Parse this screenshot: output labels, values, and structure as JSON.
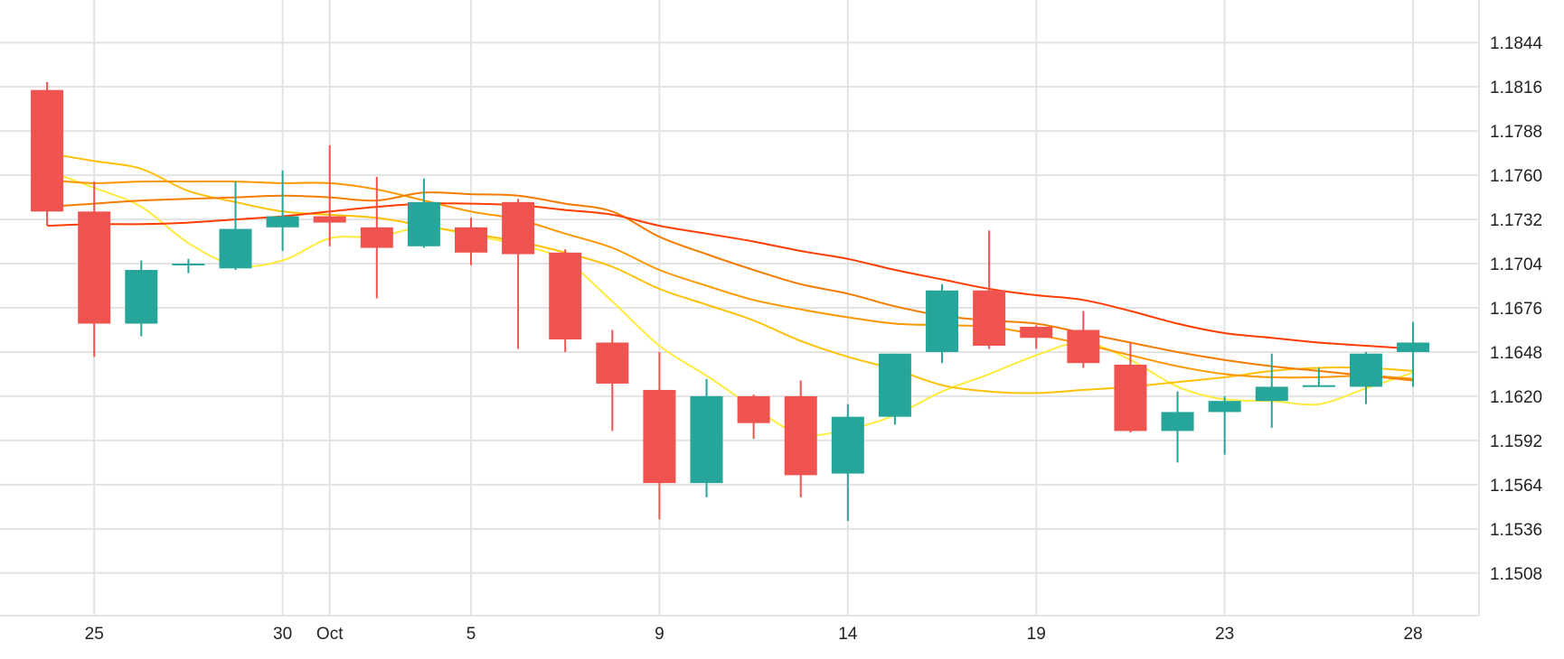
{
  "chart_data": {
    "type": "candlestick",
    "x_tick_labels": [
      {
        "label": "25",
        "day": 1
      },
      {
        "label": "30",
        "day": 5
      },
      {
        "label": "Oct",
        "day": 6
      },
      {
        "label": "5",
        "day": 9
      },
      {
        "label": "9",
        "day": 13
      },
      {
        "label": "14",
        "day": 17
      },
      {
        "label": "19",
        "day": 21
      },
      {
        "label": "23",
        "day": 25
      },
      {
        "label": "28",
        "day": 29
      }
    ],
    "y_ticks": [
      "1.1844",
      "1.1816",
      "1.1788",
      "1.1760",
      "1.1732",
      "1.1704",
      "1.1676",
      "1.1648",
      "1.1620",
      "1.1592",
      "1.1564",
      "1.1536",
      "1.1508"
    ],
    "ylim": [
      1.1481,
      1.1871
    ],
    "xlim": [
      -1,
      30.4
    ],
    "grid": true,
    "y_axis_position": "right",
    "up_color": "#26a69a",
    "down_color": "#ef5350",
    "candles": [
      {
        "day": 0,
        "open": 1.1814,
        "high": 1.1819,
        "low": 1.1728,
        "close": 1.1737
      },
      {
        "day": 1,
        "open": 1.1737,
        "high": 1.1756,
        "low": 1.1645,
        "close": 1.1666
      },
      {
        "day": 2,
        "open": 1.1666,
        "high": 1.1706,
        "low": 1.1658,
        "close": 1.17
      },
      {
        "day": 3,
        "open": 1.1703,
        "high": 1.1707,
        "low": 1.1698,
        "close": 1.1704
      },
      {
        "day": 4,
        "open": 1.1701,
        "high": 1.1756,
        "low": 1.17,
        "close": 1.1726
      },
      {
        "day": 5,
        "open": 1.1727,
        "high": 1.1763,
        "low": 1.1712,
        "close": 1.1734
      },
      {
        "day": 6,
        "open": 1.1734,
        "high": 1.1779,
        "low": 1.1715,
        "close": 1.173
      },
      {
        "day": 7,
        "open": 1.1727,
        "high": 1.1759,
        "low": 1.1682,
        "close": 1.1714
      },
      {
        "day": 8,
        "open": 1.1715,
        "high": 1.1758,
        "low": 1.1714,
        "close": 1.1743
      },
      {
        "day": 9,
        "open": 1.1727,
        "high": 1.1733,
        "low": 1.1703,
        "close": 1.1711
      },
      {
        "day": 10,
        "open": 1.1743,
        "high": 1.1745,
        "low": 1.165,
        "close": 1.171
      },
      {
        "day": 11,
        "open": 1.1711,
        "high": 1.1713,
        "low": 1.1648,
        "close": 1.1656
      },
      {
        "day": 12,
        "open": 1.1654,
        "high": 1.1662,
        "low": 1.1598,
        "close": 1.1628
      },
      {
        "day": 13,
        "open": 1.1624,
        "high": 1.1648,
        "low": 1.1542,
        "close": 1.1565
      },
      {
        "day": 14,
        "open": 1.1565,
        "high": 1.1631,
        "low": 1.1556,
        "close": 1.162
      },
      {
        "day": 15,
        "open": 1.162,
        "high": 1.1621,
        "low": 1.1593,
        "close": 1.1603
      },
      {
        "day": 16,
        "open": 1.162,
        "high": 1.163,
        "low": 1.1556,
        "close": 1.157
      },
      {
        "day": 17,
        "open": 1.1571,
        "high": 1.1615,
        "low": 1.1541,
        "close": 1.1607
      },
      {
        "day": 18,
        "open": 1.1607,
        "high": 1.1647,
        "low": 1.1602,
        "close": 1.1647
      },
      {
        "day": 19,
        "open": 1.1648,
        "high": 1.1691,
        "low": 1.1641,
        "close": 1.1687
      },
      {
        "day": 20,
        "open": 1.1687,
        "high": 1.1725,
        "low": 1.165,
        "close": 1.1652
      },
      {
        "day": 21,
        "open": 1.1664,
        "high": 1.1665,
        "low": 1.165,
        "close": 1.1657
      },
      {
        "day": 22,
        "open": 1.1662,
        "high": 1.1674,
        "low": 1.1638,
        "close": 1.1641
      },
      {
        "day": 23,
        "open": 1.164,
        "high": 1.1654,
        "low": 1.1597,
        "close": 1.1598
      },
      {
        "day": 24,
        "open": 1.1598,
        "high": 1.1623,
        "low": 1.1578,
        "close": 1.161
      },
      {
        "day": 25,
        "open": 1.161,
        "high": 1.162,
        "low": 1.1583,
        "close": 1.1617
      },
      {
        "day": 26,
        "open": 1.1617,
        "high": 1.1647,
        "low": 1.16,
        "close": 1.1626
      },
      {
        "day": 27,
        "open": 1.1626,
        "high": 1.1638,
        "low": 1.1626,
        "close": 1.1627
      },
      {
        "day": 28,
        "open": 1.1626,
        "high": 1.1648,
        "low": 1.1615,
        "close": 1.1647
      },
      {
        "day": 29,
        "open": 1.1648,
        "high": 1.1667,
        "low": 1.1626,
        "close": 1.1654
      }
    ],
    "overlays": [
      {
        "color": "#ffeb3b",
        "points": [
          [
            0,
            1.1763
          ],
          [
            1,
            1.1752
          ],
          [
            2,
            1.174
          ],
          [
            3,
            1.1717
          ],
          [
            4,
            1.1703
          ],
          [
            5,
            1.1706
          ],
          [
            6,
            1.172
          ],
          [
            7,
            1.1721
          ],
          [
            8,
            1.1727
          ],
          [
            9,
            1.1722
          ],
          [
            10,
            1.1716
          ],
          [
            11,
            1.1706
          ],
          [
            12,
            1.168
          ],
          [
            13,
            1.1652
          ],
          [
            14,
            1.1633
          ],
          [
            15,
            1.1613
          ],
          [
            16,
            1.1596
          ],
          [
            17,
            1.1599
          ],
          [
            18,
            1.1608
          ],
          [
            19,
            1.1623
          ],
          [
            20,
            1.1634
          ],
          [
            21,
            1.1646
          ],
          [
            22,
            1.1654
          ],
          [
            23,
            1.1643
          ],
          [
            24,
            1.1626
          ],
          [
            25,
            1.1618
          ],
          [
            26,
            1.1617
          ],
          [
            27,
            1.1615
          ],
          [
            28,
            1.1625
          ],
          [
            29,
            1.1635
          ]
        ]
      },
      {
        "color": "#ffc107",
        "points": [
          [
            0,
            1.1774
          ],
          [
            1,
            1.1769
          ],
          [
            2,
            1.1764
          ],
          [
            3,
            1.175
          ],
          [
            4,
            1.1743
          ],
          [
            5,
            1.1737
          ],
          [
            6,
            1.1735
          ],
          [
            7,
            1.1733
          ],
          [
            8,
            1.1728
          ],
          [
            9,
            1.1723
          ],
          [
            10,
            1.1718
          ],
          [
            11,
            1.1711
          ],
          [
            12,
            1.1702
          ],
          [
            13,
            1.1688
          ],
          [
            14,
            1.1678
          ],
          [
            15,
            1.1668
          ],
          [
            16,
            1.1655
          ],
          [
            17,
            1.1645
          ],
          [
            18,
            1.1637
          ],
          [
            19,
            1.1627
          ],
          [
            20,
            1.1623
          ],
          [
            21,
            1.1622
          ],
          [
            22,
            1.1624
          ],
          [
            23,
            1.1626
          ],
          [
            24,
            1.1629
          ],
          [
            25,
            1.1632
          ],
          [
            26,
            1.1636
          ],
          [
            27,
            1.1638
          ],
          [
            28,
            1.1638
          ],
          [
            29,
            1.1636
          ]
        ]
      },
      {
        "color": "#ff9800",
        "points": [
          [
            0,
            1.1757
          ],
          [
            1,
            1.1755
          ],
          [
            2,
            1.1756
          ],
          [
            3,
            1.1756
          ],
          [
            4,
            1.1756
          ],
          [
            5,
            1.1755
          ],
          [
            6,
            1.1755
          ],
          [
            7,
            1.1751
          ],
          [
            8,
            1.1744
          ],
          [
            9,
            1.1737
          ],
          [
            10,
            1.1732
          ],
          [
            11,
            1.1723
          ],
          [
            12,
            1.1714
          ],
          [
            13,
            1.17
          ],
          [
            14,
            1.169
          ],
          [
            15,
            1.1681
          ],
          [
            16,
            1.1675
          ],
          [
            17,
            1.167
          ],
          [
            18,
            1.1666
          ],
          [
            19,
            1.1665
          ],
          [
            20,
            1.1664
          ],
          [
            21,
            1.1659
          ],
          [
            22,
            1.1653
          ],
          [
            23,
            1.1646
          ],
          [
            24,
            1.1639
          ],
          [
            25,
            1.1634
          ],
          [
            26,
            1.1632
          ],
          [
            27,
            1.1632
          ],
          [
            28,
            1.1633
          ],
          [
            29,
            1.1631
          ]
        ]
      },
      {
        "color": "#f57c00",
        "points": [
          [
            0,
            1.174
          ],
          [
            1,
            1.1742
          ],
          [
            2,
            1.1744
          ],
          [
            3,
            1.1745
          ],
          [
            4,
            1.1746
          ],
          [
            5,
            1.1747
          ],
          [
            6,
            1.1746
          ],
          [
            7,
            1.1744
          ],
          [
            8,
            1.1749
          ],
          [
            9,
            1.1748
          ],
          [
            10,
            1.1747
          ],
          [
            11,
            1.1742
          ],
          [
            12,
            1.1737
          ],
          [
            13,
            1.1721
          ],
          [
            14,
            1.171
          ],
          [
            15,
            1.17
          ],
          [
            16,
            1.1691
          ],
          [
            17,
            1.1685
          ],
          [
            18,
            1.1677
          ],
          [
            19,
            1.1671
          ],
          [
            20,
            1.1668
          ],
          [
            21,
            1.1666
          ],
          [
            22,
            1.166
          ],
          [
            23,
            1.1654
          ],
          [
            24,
            1.1648
          ],
          [
            25,
            1.1643
          ],
          [
            26,
            1.1639
          ],
          [
            27,
            1.1636
          ],
          [
            28,
            1.1633
          ],
          [
            29,
            1.163
          ]
        ]
      },
      {
        "color": "#ff3d00",
        "points": [
          [
            0,
            1.1728
          ],
          [
            1,
            1.1729
          ],
          [
            2,
            1.1729
          ],
          [
            3,
            1.173
          ],
          [
            4,
            1.1732
          ],
          [
            5,
            1.1734
          ],
          [
            6,
            1.1737
          ],
          [
            7,
            1.174
          ],
          [
            8,
            1.1742
          ],
          [
            9,
            1.1742
          ],
          [
            10,
            1.1741
          ],
          [
            11,
            1.1738
          ],
          [
            12,
            1.1735
          ],
          [
            13,
            1.1728
          ],
          [
            14,
            1.1723
          ],
          [
            15,
            1.1718
          ],
          [
            16,
            1.1712
          ],
          [
            17,
            1.1707
          ],
          [
            18,
            1.17
          ],
          [
            19,
            1.1694
          ],
          [
            20,
            1.1688
          ],
          [
            21,
            1.1684
          ],
          [
            22,
            1.1681
          ],
          [
            23,
            1.1674
          ],
          [
            24,
            1.1666
          ],
          [
            25,
            1.166
          ],
          [
            26,
            1.1657
          ],
          [
            27,
            1.1654
          ],
          [
            28,
            1.1652
          ],
          [
            29,
            1.165
          ]
        ]
      }
    ]
  }
}
